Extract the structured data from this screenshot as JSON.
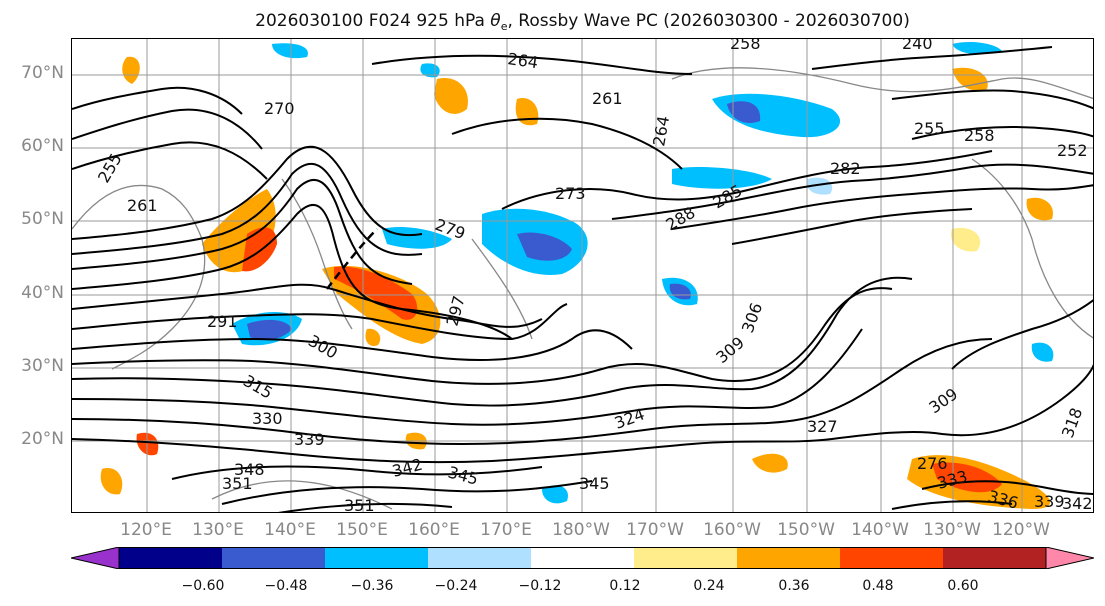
{
  "title": {
    "prefix": "2026030100 F024 925 hPa ",
    "theta": "θ",
    "theta_sub": "e",
    "suffix": ", Rossby Wave PC (2026030300 - 2026030700)"
  },
  "lat_labels": [
    "70°N",
    "60°N",
    "50°N",
    "40°N",
    "30°N",
    "20°N"
  ],
  "lon_labels": [
    "120°E",
    "130°E",
    "140°E",
    "150°E",
    "160°E",
    "170°E",
    "180°W",
    "170°W",
    "160°W",
    "150°W",
    "140°W",
    "130°W",
    "120°W"
  ],
  "contour_labels": [
    "264",
    "258",
    "240",
    "270",
    "261",
    "264",
    "255",
    "258",
    "252",
    "255",
    "261",
    "273",
    "276",
    "282",
    "279",
    "288",
    "285",
    "291",
    "297",
    "300",
    "306",
    "309",
    "315",
    "330",
    "339",
    "327",
    "324",
    "348",
    "351",
    "342",
    "345",
    "351",
    "345",
    "333",
    "336",
    "339",
    "342",
    "318",
    "309"
  ],
  "colorbar": {
    "colors": [
      "#9932cc",
      "#00008b",
      "#3a5bd0",
      "#00bfff",
      "#b0e0ff",
      "#ffffff",
      "#ffec8b",
      "#ffa500",
      "#ff4500",
      "#b22222",
      "#ff88aa"
    ],
    "tick_labels": [
      "−0.60",
      "−0.48",
      "−0.36",
      "−0.24",
      "−0.12",
      "0.12",
      "0.24",
      "0.36",
      "0.48",
      "0.60"
    ]
  },
  "colors": {
    "positive_low": "#ffa500",
    "positive_mid": "#ff4500",
    "positive_light": "#ffec8b",
    "negative_low": "#00bfff",
    "negative_mid": "#3a5bd0",
    "negative_light": "#b0e0ff",
    "contour": "#000000",
    "grid": "#999999"
  }
}
